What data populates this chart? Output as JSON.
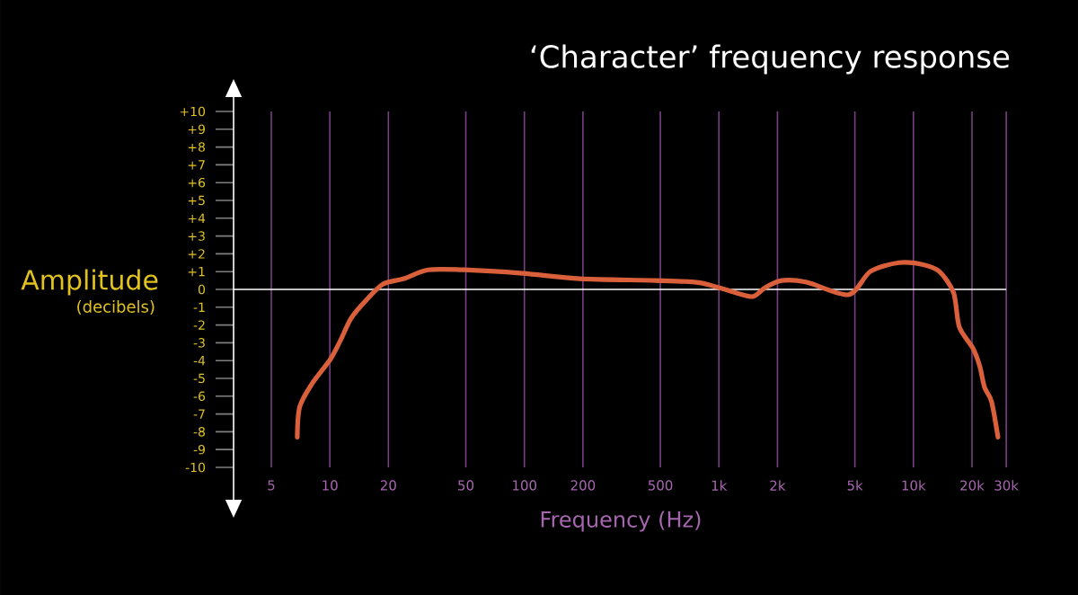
{
  "chart_data": {
    "type": "line",
    "title": "‘Character’ frequency response",
    "xlabel": "Frequency (Hz)",
    "ylabel": "Amplitude",
    "annotations": [
      "(decibels)"
    ],
    "log": "x",
    "xlim": [
      3.2,
      30600
    ],
    "ylim": [
      -10,
      10
    ],
    "xticks": [
      5,
      10,
      20,
      50,
      100,
      200,
      500,
      {
        "value": 1000,
        "label": "1k"
      },
      {
        "value": 2000,
        "label": "2k"
      },
      {
        "value": 5000,
        "label": "5k"
      },
      {
        "value": 10000,
        "label": "10k"
      },
      {
        "value": 20000,
        "label": "20k"
      },
      {
        "value": 30000,
        "label": "30k"
      }
    ],
    "yticks": [
      {
        "value": 10,
        "label": "+10"
      },
      {
        "value": 9,
        "label": "+9"
      },
      {
        "value": 8,
        "label": "+8"
      },
      {
        "value": 7,
        "label": "+7"
      },
      {
        "value": 6,
        "label": "+6"
      },
      {
        "value": 5,
        "label": "+5"
      },
      {
        "value": 4,
        "label": "+4"
      },
      {
        "value": 3,
        "label": "+3"
      },
      {
        "value": 2,
        "label": "+2"
      },
      {
        "value": 1,
        "label": "+1"
      },
      0,
      -1,
      -2,
      -3,
      -4,
      -5,
      -6,
      -7,
      -8,
      -9,
      -10
    ],
    "grid": "x",
    "marker": "none",
    "line_style": "solid",
    "ref_lines": [
      {
        "axis": "y",
        "value": 0,
        "color": "#ffffff"
      }
    ],
    "x": [
      6.8,
      7.0,
      8.1,
      10.1,
      11.3,
      12.9,
      15.4,
      18.8,
      24,
      32,
      49,
      98,
      193,
      469,
      768,
      1000,
      1230,
      1500,
      1730,
      2100,
      2830,
      4640,
      6000,
      8410,
      11100,
      13600,
      16100,
      17200,
      20200,
      21900,
      23200,
      25200,
      27200
    ],
    "series": [
      {
        "color": "#d9603b",
        "values": [
          -8.3,
          -6.6,
          -5.3,
          -3.9,
          -2.9,
          -1.6,
          -0.6,
          0.3,
          0.6,
          1.1,
          1.1,
          0.9,
          0.6,
          0.5,
          0.4,
          0.1,
          -0.2,
          -0.4,
          0.1,
          0.5,
          0.4,
          -0.3,
          1.0,
          1.5,
          1.4,
          1.0,
          -0.2,
          -2.1,
          -3.3,
          -4.3,
          -5.5,
          -6.3,
          -8.3
        ]
      }
    ]
  }
}
